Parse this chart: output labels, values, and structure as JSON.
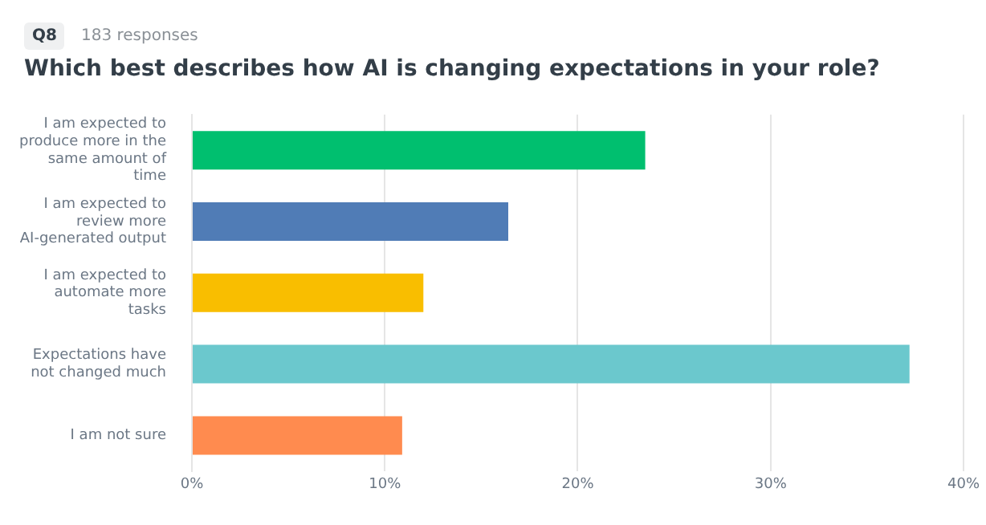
{
  "chart_data": {
    "type": "bar",
    "orientation": "horizontal",
    "title": "Which best describes how AI is changing expectations in your role?",
    "subtitle": "183 responses",
    "annotations": [
      "Q8"
    ],
    "categories": [
      "I am expected to produce more in the same amount of time",
      "I am expected to review more AI-generated output",
      "I am expected to automate more tasks",
      "Expectations have not changed much",
      "I am not sure"
    ],
    "values": [
      23.5,
      16.4,
      12.0,
      37.2,
      10.9
    ],
    "colors": [
      "#00bf6f",
      "#507cb6",
      "#f9be00",
      "#6bc8cd",
      "#ff8b4f"
    ],
    "xlim": [
      0,
      40
    ],
    "xticks": [
      {
        "value": 0,
        "label": "0%"
      },
      {
        "value": 10,
        "label": "10%"
      },
      {
        "value": 20,
        "label": "20%"
      },
      {
        "value": 30,
        "label": "30%"
      },
      {
        "value": 40,
        "label": "40%"
      }
    ],
    "grid": "x",
    "legend": false
  }
}
